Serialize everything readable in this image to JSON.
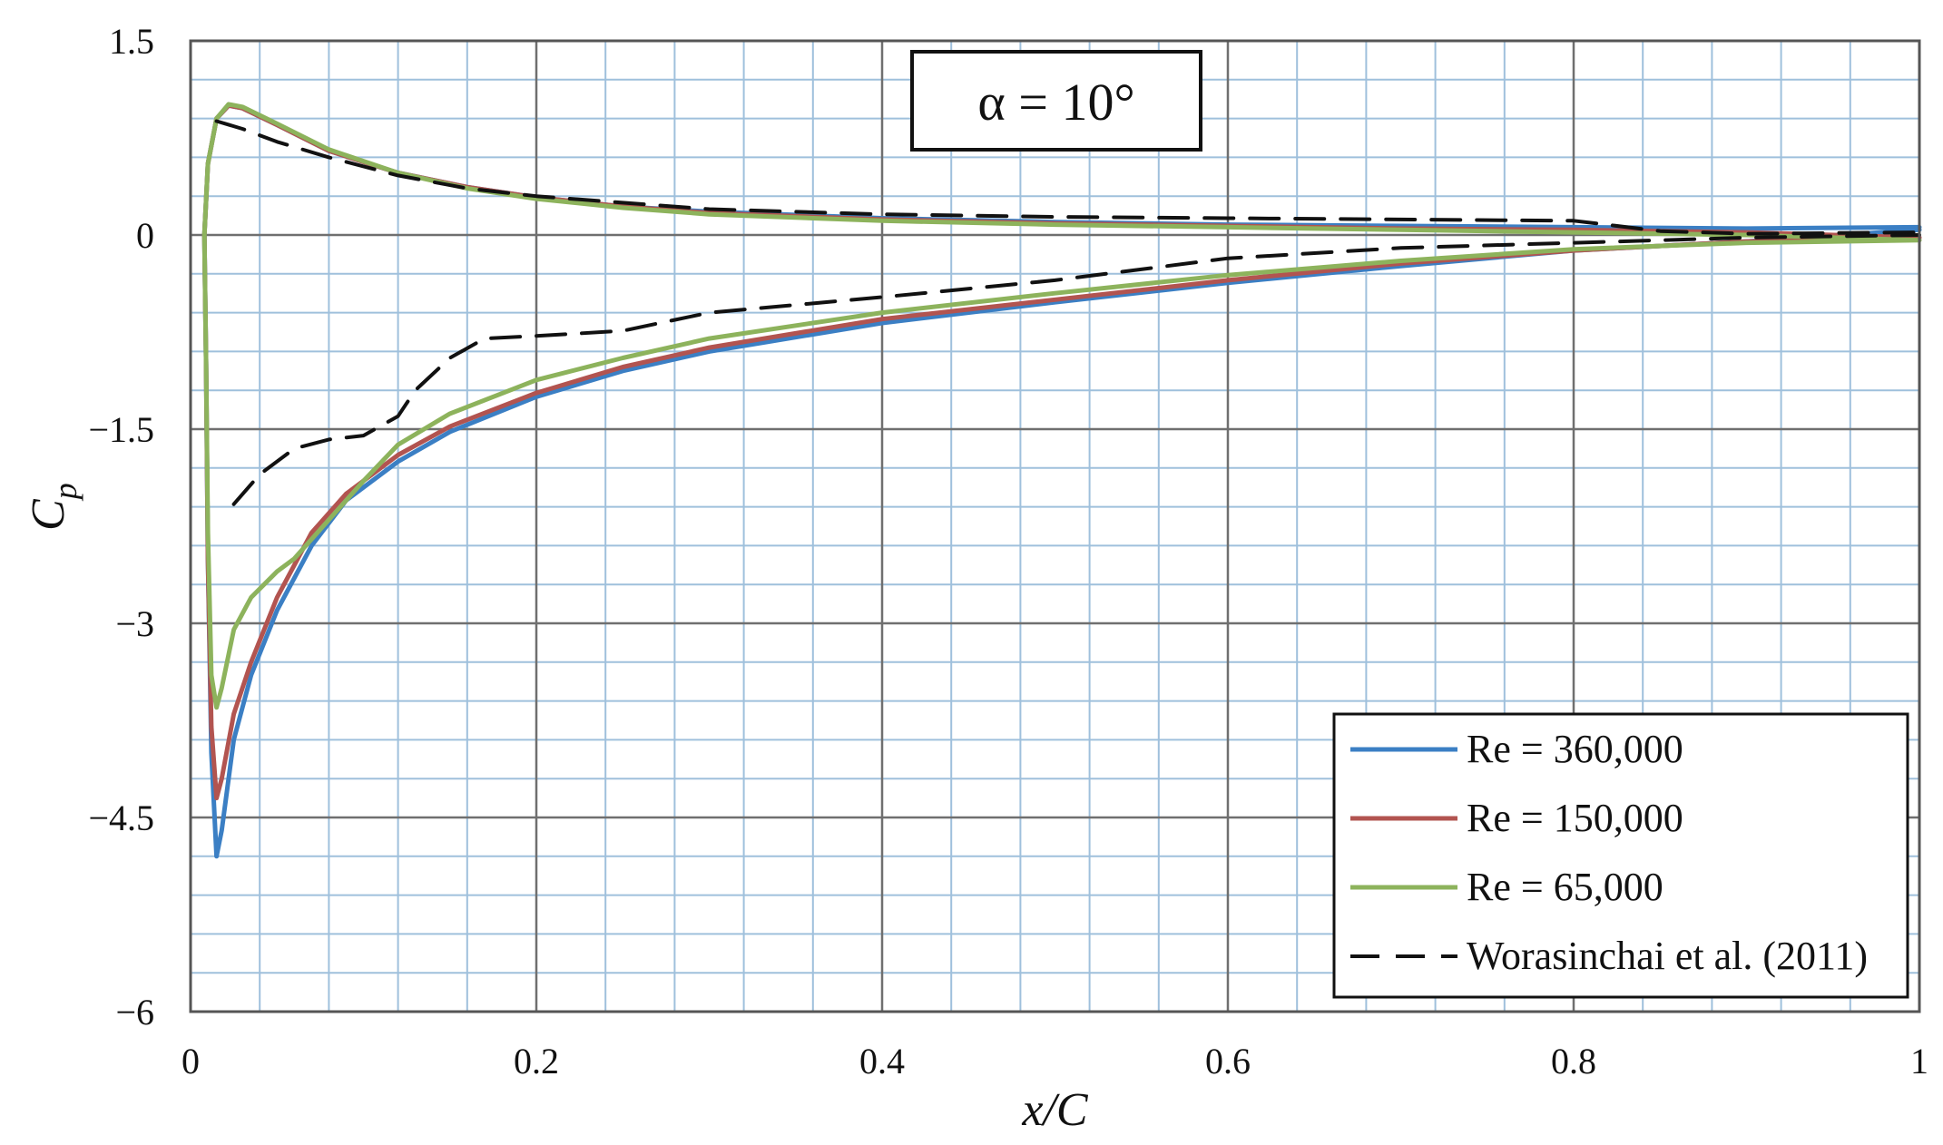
{
  "chart_data": {
    "type": "line",
    "title": "",
    "annotation": "α = 10°",
    "xlabel": "x/C",
    "ylabel": "C",
    "ylabel_subscript": "p",
    "xlim": [
      0,
      1
    ],
    "ylim": [
      -6,
      1.5
    ],
    "x_ticks": [
      0,
      0.2,
      0.4,
      0.6,
      0.8,
      1
    ],
    "x_tick_labels": [
      "0",
      "0.2",
      "0.4",
      "0.6",
      "0.8",
      "1"
    ],
    "y_ticks": [
      1.5,
      0,
      -1.5,
      -3,
      -4.5,
      -6
    ],
    "y_tick_labels": [
      "1.5",
      "0",
      "−1.5",
      "−3",
      "−4.5",
      "−6"
    ],
    "grid": true,
    "grid_minor_x_step": 0.04,
    "grid_minor_y_step": 0.3,
    "legend_position": "bottom-right",
    "series": [
      {
        "name": "Re = 360,000",
        "color": "#3b7fc4",
        "style": "solid",
        "upper": [
          [
            0.008,
            0
          ],
          [
            0.01,
            0.55
          ],
          [
            0.015,
            0.9
          ],
          [
            0.022,
            1.0
          ],
          [
            0.03,
            0.98
          ],
          [
            0.05,
            0.85
          ],
          [
            0.08,
            0.65
          ],
          [
            0.12,
            0.48
          ],
          [
            0.16,
            0.37
          ],
          [
            0.2,
            0.29
          ],
          [
            0.25,
            0.22
          ],
          [
            0.3,
            0.18
          ],
          [
            0.4,
            0.13
          ],
          [
            0.5,
            0.1
          ],
          [
            0.6,
            0.08
          ],
          [
            0.7,
            0.07
          ],
          [
            0.8,
            0.06
          ],
          [
            0.9,
            0.05
          ],
          [
            1.0,
            0.06
          ]
        ],
        "lower": [
          [
            0.008,
            0
          ],
          [
            0.009,
            -1.0
          ],
          [
            0.01,
            -2.5
          ],
          [
            0.012,
            -4.0
          ],
          [
            0.015,
            -4.8
          ],
          [
            0.018,
            -4.6
          ],
          [
            0.025,
            -3.9
          ],
          [
            0.035,
            -3.4
          ],
          [
            0.05,
            -2.9
          ],
          [
            0.07,
            -2.4
          ],
          [
            0.09,
            -2.05
          ],
          [
            0.12,
            -1.75
          ],
          [
            0.15,
            -1.52
          ],
          [
            0.2,
            -1.25
          ],
          [
            0.25,
            -1.05
          ],
          [
            0.3,
            -0.9
          ],
          [
            0.4,
            -0.68
          ],
          [
            0.5,
            -0.52
          ],
          [
            0.6,
            -0.37
          ],
          [
            0.7,
            -0.24
          ],
          [
            0.8,
            -0.12
          ],
          [
            0.9,
            -0.05
          ],
          [
            1.0,
            0.04
          ]
        ]
      },
      {
        "name": "Re = 150,000",
        "color": "#b25450",
        "style": "solid",
        "upper": [
          [
            0.008,
            0
          ],
          [
            0.01,
            0.55
          ],
          [
            0.015,
            0.9
          ],
          [
            0.022,
            1.0
          ],
          [
            0.03,
            0.98
          ],
          [
            0.05,
            0.85
          ],
          [
            0.08,
            0.65
          ],
          [
            0.12,
            0.48
          ],
          [
            0.16,
            0.37
          ],
          [
            0.2,
            0.29
          ],
          [
            0.25,
            0.22
          ],
          [
            0.3,
            0.17
          ],
          [
            0.4,
            0.12
          ],
          [
            0.5,
            0.09
          ],
          [
            0.6,
            0.07
          ],
          [
            0.7,
            0.05
          ],
          [
            0.8,
            0.04
          ],
          [
            0.9,
            0.02
          ],
          [
            1.0,
            -0.02
          ]
        ],
        "lower": [
          [
            0.008,
            0
          ],
          [
            0.009,
            -1.0
          ],
          [
            0.01,
            -2.5
          ],
          [
            0.012,
            -3.8
          ],
          [
            0.015,
            -4.35
          ],
          [
            0.018,
            -4.2
          ],
          [
            0.025,
            -3.7
          ],
          [
            0.035,
            -3.3
          ],
          [
            0.05,
            -2.8
          ],
          [
            0.07,
            -2.3
          ],
          [
            0.09,
            -2.0
          ],
          [
            0.12,
            -1.7
          ],
          [
            0.15,
            -1.48
          ],
          [
            0.2,
            -1.22
          ],
          [
            0.25,
            -1.02
          ],
          [
            0.3,
            -0.87
          ],
          [
            0.4,
            -0.65
          ],
          [
            0.5,
            -0.5
          ],
          [
            0.6,
            -0.35
          ],
          [
            0.7,
            -0.22
          ],
          [
            0.8,
            -0.12
          ],
          [
            0.9,
            -0.05
          ],
          [
            1.0,
            -0.02
          ]
        ]
      },
      {
        "name": "Re = 65,000",
        "color": "#8db35c",
        "style": "solid",
        "upper": [
          [
            0.008,
            0
          ],
          [
            0.01,
            0.55
          ],
          [
            0.015,
            0.9
          ],
          [
            0.022,
            1.01
          ],
          [
            0.03,
            0.99
          ],
          [
            0.05,
            0.86
          ],
          [
            0.08,
            0.66
          ],
          [
            0.12,
            0.48
          ],
          [
            0.16,
            0.36
          ],
          [
            0.2,
            0.28
          ],
          [
            0.25,
            0.21
          ],
          [
            0.3,
            0.16
          ],
          [
            0.4,
            0.11
          ],
          [
            0.5,
            0.08
          ],
          [
            0.6,
            0.06
          ],
          [
            0.7,
            0.04
          ],
          [
            0.8,
            0.02
          ],
          [
            0.9,
            0.0
          ],
          [
            1.0,
            -0.04
          ]
        ],
        "lower": [
          [
            0.008,
            0
          ],
          [
            0.009,
            -1.0
          ],
          [
            0.01,
            -2.3
          ],
          [
            0.012,
            -3.4
          ],
          [
            0.015,
            -3.65
          ],
          [
            0.018,
            -3.5
          ],
          [
            0.025,
            -3.05
          ],
          [
            0.035,
            -2.8
          ],
          [
            0.05,
            -2.6
          ],
          [
            0.06,
            -2.5
          ],
          [
            0.08,
            -2.2
          ],
          [
            0.1,
            -1.9
          ],
          [
            0.12,
            -1.62
          ],
          [
            0.15,
            -1.38
          ],
          [
            0.2,
            -1.12
          ],
          [
            0.25,
            -0.95
          ],
          [
            0.3,
            -0.8
          ],
          [
            0.4,
            -0.6
          ],
          [
            0.5,
            -0.45
          ],
          [
            0.6,
            -0.31
          ],
          [
            0.7,
            -0.2
          ],
          [
            0.8,
            -0.11
          ],
          [
            0.9,
            -0.06
          ],
          [
            1.0,
            -0.04
          ]
        ]
      },
      {
        "name": "Worasinchai et al. (2011)",
        "color": "#111111",
        "style": "dashed",
        "upper": [
          [
            0.015,
            0.88
          ],
          [
            0.03,
            0.82
          ],
          [
            0.05,
            0.72
          ],
          [
            0.08,
            0.6
          ],
          [
            0.12,
            0.46
          ],
          [
            0.16,
            0.36
          ],
          [
            0.2,
            0.3
          ],
          [
            0.3,
            0.2
          ],
          [
            0.4,
            0.16
          ],
          [
            0.5,
            0.14
          ],
          [
            0.6,
            0.13
          ],
          [
            0.7,
            0.12
          ],
          [
            0.8,
            0.11
          ],
          [
            0.85,
            0.03
          ],
          [
            0.9,
            0.01
          ],
          [
            1.0,
            0.02
          ]
        ],
        "lower": [
          [
            0.025,
            -2.08
          ],
          [
            0.04,
            -1.85
          ],
          [
            0.06,
            -1.65
          ],
          [
            0.08,
            -1.58
          ],
          [
            0.1,
            -1.55
          ],
          [
            0.12,
            -1.4
          ],
          [
            0.13,
            -1.2
          ],
          [
            0.15,
            -0.95
          ],
          [
            0.17,
            -0.8
          ],
          [
            0.2,
            -0.78
          ],
          [
            0.25,
            -0.74
          ],
          [
            0.3,
            -0.6
          ],
          [
            0.4,
            -0.48
          ],
          [
            0.5,
            -0.35
          ],
          [
            0.6,
            -0.18
          ],
          [
            0.7,
            -0.1
          ],
          [
            0.8,
            -0.06
          ],
          [
            0.9,
            -0.02
          ],
          [
            1.0,
            0.0
          ]
        ]
      }
    ]
  }
}
